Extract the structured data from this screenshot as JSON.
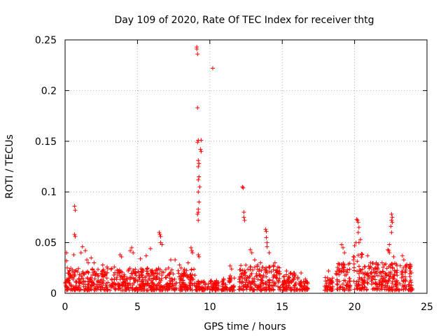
{
  "chart_data": {
    "type": "scatter",
    "title": "Day 109 of 2020, Rate Of TEC Index for receiver thtg",
    "xlabel": "GPS time / hours",
    "ylabel": "ROTI / TECUs",
    "xlim": [
      0,
      25
    ],
    "ylim": [
      0,
      0.25
    ],
    "xticks": [
      0,
      5,
      10,
      15,
      20,
      25
    ],
    "xtick_labels": [
      "0",
      "5",
      "10",
      "15",
      "20",
      "25"
    ],
    "yticks": [
      0,
      0.05,
      0.1,
      0.15,
      0.2,
      0.25
    ],
    "ytick_labels": [
      "0",
      "0.05",
      "0.1",
      "0.15",
      "0.2",
      "0.25"
    ],
    "grid": true,
    "marker": "+",
    "series_color": "#ff0000",
    "series": [
      {
        "name": "ROTI",
        "points": [
          [
            0.1,
            0.04
          ],
          [
            0.1,
            0.032
          ],
          [
            0.15,
            0.025
          ],
          [
            0.2,
            0.02
          ],
          [
            0.65,
            0.086
          ],
          [
            0.7,
            0.082
          ],
          [
            0.65,
            0.058
          ],
          [
            0.7,
            0.056
          ],
          [
            0.6,
            0.038
          ],
          [
            1.2,
            0.046
          ],
          [
            1.1,
            0.04
          ],
          [
            1.4,
            0.042
          ],
          [
            1.5,
            0.033
          ],
          [
            1.6,
            0.03
          ],
          [
            1.8,
            0.035
          ],
          [
            2.0,
            0.03
          ],
          [
            2.6,
            0.028
          ],
          [
            2.9,
            0.026
          ],
          [
            3.4,
            0.026
          ],
          [
            3.8,
            0.038
          ],
          [
            3.9,
            0.036
          ],
          [
            4.6,
            0.045
          ],
          [
            4.5,
            0.042
          ],
          [
            4.7,
            0.04
          ],
          [
            5.2,
            0.034
          ],
          [
            5.6,
            0.037
          ],
          [
            5.9,
            0.044
          ],
          [
            6.5,
            0.06
          ],
          [
            6.55,
            0.058
          ],
          [
            6.6,
            0.056
          ],
          [
            6.6,
            0.05
          ],
          [
            6.7,
            0.048
          ],
          [
            7.3,
            0.033
          ],
          [
            7.6,
            0.033
          ],
          [
            7.9,
            0.028
          ],
          [
            8.5,
            0.03
          ],
          [
            8.7,
            0.045
          ],
          [
            8.75,
            0.042
          ],
          [
            8.8,
            0.04
          ],
          [
            9.1,
            0.243
          ],
          [
            9.1,
            0.241
          ],
          [
            9.15,
            0.236
          ],
          [
            9.15,
            0.183
          ],
          [
            9.2,
            0.151
          ],
          [
            9.15,
            0.149
          ],
          [
            9.4,
            0.151
          ],
          [
            9.35,
            0.142
          ],
          [
            9.4,
            0.14
          ],
          [
            9.2,
            0.131
          ],
          [
            9.25,
            0.128
          ],
          [
            9.2,
            0.125
          ],
          [
            9.25,
            0.115
          ],
          [
            9.2,
            0.112
          ],
          [
            9.3,
            0.105
          ],
          [
            9.2,
            0.1
          ],
          [
            9.25,
            0.09
          ],
          [
            9.2,
            0.083
          ],
          [
            9.2,
            0.08
          ],
          [
            9.15,
            0.078
          ],
          [
            9.2,
            0.072
          ],
          [
            9.2,
            0.038
          ],
          [
            9.25,
            0.036
          ],
          [
            10.2,
            0.222
          ],
          [
            11.4,
            0.027
          ],
          [
            11.5,
            0.024
          ],
          [
            12.25,
            0.105
          ],
          [
            12.3,
            0.104
          ],
          [
            12.35,
            0.08
          ],
          [
            12.35,
            0.075
          ],
          [
            12.4,
            0.072
          ],
          [
            12.8,
            0.043
          ],
          [
            12.9,
            0.04
          ],
          [
            13.1,
            0.033
          ],
          [
            13.5,
            0.03
          ],
          [
            13.85,
            0.063
          ],
          [
            13.9,
            0.061
          ],
          [
            13.9,
            0.055
          ],
          [
            13.95,
            0.05
          ],
          [
            13.95,
            0.046
          ],
          [
            14.1,
            0.04
          ],
          [
            14.5,
            0.03
          ],
          [
            15.3,
            0.022
          ],
          [
            15.8,
            0.02
          ],
          [
            16.3,
            0.02
          ],
          [
            16.6,
            0.014
          ],
          [
            18.2,
            0.022
          ],
          [
            18.9,
            0.02
          ],
          [
            19.1,
            0.048
          ],
          [
            19.2,
            0.045
          ],
          [
            19.3,
            0.04
          ],
          [
            19.3,
            0.028
          ],
          [
            20.0,
            0.047
          ],
          [
            20.1,
            0.05
          ],
          [
            20.15,
            0.073
          ],
          [
            20.2,
            0.072
          ],
          [
            20.25,
            0.07
          ],
          [
            20.3,
            0.065
          ],
          [
            20.25,
            0.06
          ],
          [
            20.4,
            0.053
          ],
          [
            20.3,
            0.05
          ],
          [
            20.9,
            0.037
          ],
          [
            21.1,
            0.03
          ],
          [
            21.5,
            0.03
          ],
          [
            21.9,
            0.03
          ],
          [
            22.3,
            0.043
          ],
          [
            22.35,
            0.042
          ],
          [
            22.4,
            0.048
          ],
          [
            22.4,
            0.04
          ],
          [
            22.55,
            0.078
          ],
          [
            22.6,
            0.075
          ],
          [
            22.55,
            0.072
          ],
          [
            22.6,
            0.07
          ],
          [
            22.5,
            0.066
          ],
          [
            22.55,
            0.06
          ],
          [
            22.7,
            0.036
          ],
          [
            23.3,
            0.037
          ],
          [
            23.4,
            0.033
          ],
          [
            23.6,
            0.028
          ],
          [
            23.8,
            0.025
          ]
        ],
        "dense_ranges": [
          {
            "x": [
              0.0,
              9.0
            ],
            "y": [
              0.0,
              0.025
            ]
          },
          {
            "x": [
              9.0,
              9.7
            ],
            "y": [
              0.0,
              0.012
            ]
          },
          {
            "x": [
              9.8,
              10.6
            ],
            "y": [
              0.0,
              0.014
            ]
          },
          {
            "x": [
              10.8,
              11.2
            ],
            "y": [
              0.0,
              0.016
            ]
          },
          {
            "x": [
              11.3,
              11.7
            ],
            "y": [
              0.0,
              0.018
            ]
          },
          {
            "x": [
              12.0,
              14.9
            ],
            "y": [
              0.0,
              0.028
            ]
          },
          {
            "x": [
              15.0,
              16.1
            ],
            "y": [
              0.0,
              0.02
            ]
          },
          {
            "x": [
              16.2,
              16.8
            ],
            "y": [
              0.0,
              0.012
            ]
          },
          {
            "x": [
              17.9,
              18.5
            ],
            "y": [
              0.0,
              0.016
            ]
          },
          {
            "x": [
              18.7,
              19.7
            ],
            "y": [
              0.0,
              0.03
            ]
          },
          {
            "x": [
              19.9,
              20.6
            ],
            "y": [
              0.0,
              0.045
            ]
          },
          {
            "x": [
              20.6,
              24.0
            ],
            "y": [
              0.0,
              0.03
            ]
          }
        ]
      }
    ]
  }
}
